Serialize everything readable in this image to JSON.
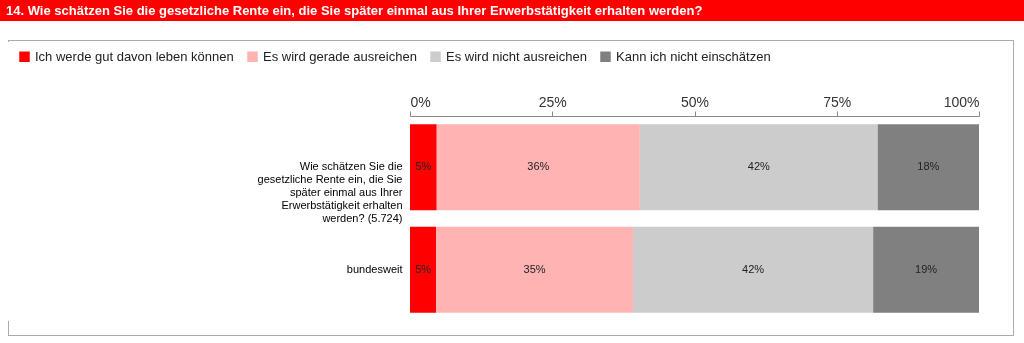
{
  "chart_data": {
    "type": "bar",
    "orientation": "horizontal",
    "stacked": true,
    "title": "14. Wie schätzen Sie die gesetzliche Rente ein, die Sie später einmal aus Ihrer Erwerbstätigkeit erhalten werden?",
    "categories": [
      "Wie schätzen Sie die gesetzliche Rente ein, die Sie später einmal aus Ihrer Erwerbstätigkeit erhalten werden? (5.724)",
      "bundesweit"
    ],
    "series": [
      {
        "name": "Ich werde gut davon leben können",
        "color": "#ff0000",
        "values": [
          4.7,
          4.6
        ],
        "value_labels": [
          "5%",
          "5%"
        ]
      },
      {
        "name": "Es wird gerade ausreichen",
        "color": "#ffb3b3",
        "values": [
          35.7,
          34.6
        ],
        "value_labels": [
          "36%",
          "35%"
        ]
      },
      {
        "name": "Es wird nicht ausreichen",
        "color": "#cccccc",
        "values": [
          41.8,
          42.2
        ],
        "value_labels": [
          "42%",
          "42%"
        ]
      },
      {
        "name": "Kann ich nicht einschätzen",
        "color": "#808080",
        "values": [
          17.8,
          18.6
        ],
        "value_labels": [
          "18%",
          "19%"
        ]
      }
    ],
    "xlim": [
      0,
      100
    ],
    "xticks": [
      {
        "value": 0,
        "label": "0%"
      },
      {
        "value": 25,
        "label": "25%"
      },
      {
        "value": 50,
        "label": "50%"
      },
      {
        "value": 75,
        "label": "75%"
      },
      {
        "value": 100,
        "label": "100%"
      }
    ],
    "legend": "top left",
    "grid": false
  }
}
